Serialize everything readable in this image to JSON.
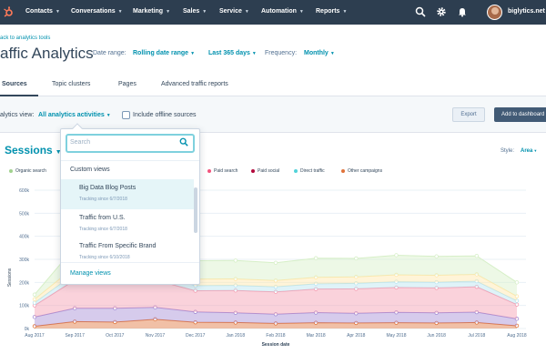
{
  "nav": {
    "items": [
      {
        "label": "Contacts"
      },
      {
        "label": "Conversations"
      },
      {
        "label": "Marketing"
      },
      {
        "label": "Sales"
      },
      {
        "label": "Service"
      },
      {
        "label": "Automation"
      },
      {
        "label": "Reports"
      }
    ],
    "account": "biglytics.net",
    "icons": [
      "hubspot-logo-icon",
      "search-icon",
      "gear-icon",
      "bell-icon"
    ]
  },
  "header": {
    "back_link": "ack to analytics tools",
    "title": "affic Analytics",
    "filters": [
      {
        "label": "Date range:",
        "value": "Rolling date range"
      },
      {
        "label": "",
        "value": "Last 365 days"
      },
      {
        "label": "Frequency:",
        "value": "Monthly"
      }
    ]
  },
  "tabs": [
    {
      "label": "Sources",
      "active": true
    },
    {
      "label": "Topic clusters",
      "active": false
    },
    {
      "label": "Pages",
      "active": false
    },
    {
      "label": "Advanced traffic reports",
      "active": false
    }
  ],
  "toolbar": {
    "view_label": "alytics view:",
    "view_value": "All analytics activities",
    "offline_label": "Include offline sources",
    "offline_checked": false,
    "export_label": "Export",
    "dashboard_label": "Add to dashboard"
  },
  "chart_header": {
    "metric": "Sessions",
    "style_label": "Style:",
    "style_value": "Area"
  },
  "legend": [
    {
      "name": "Organic search",
      "color": "#a2d28f"
    },
    {
      "name": "Paid search",
      "color": "#f2547d"
    },
    {
      "name": "Paid social",
      "color": "#b3093c"
    },
    {
      "name": "Direct traffic",
      "color": "#51d3d9"
    },
    {
      "name": "Other campaigns",
      "color": "#e0733a"
    }
  ],
  "dropdown": {
    "search_placeholder": "Search",
    "section_title": "Custom views",
    "options": [
      {
        "name": "Big Data Blog Posts",
        "sub": "Tracking since 6/7/2018",
        "highlighted": true
      },
      {
        "name": "Traffic from U.S.",
        "sub": "Tracking since 6/7/2018",
        "highlighted": false
      },
      {
        "name": "Traffic From Specific Brand",
        "sub": "Tracking since 6/10/2018",
        "highlighted": false
      }
    ],
    "manage_label": "Manage views"
  },
  "chart_data": {
    "type": "area",
    "stacked": true,
    "title": "",
    "xlabel": "Session date",
    "ylabel": "Sessions",
    "ylim": [
      0,
      600000
    ],
    "yticks": [
      {
        "value": 0,
        "label": "0k"
      },
      {
        "value": 100000,
        "label": "100k"
      },
      {
        "value": 200000,
        "label": "200k"
      },
      {
        "value": 300000,
        "label": "300k"
      },
      {
        "value": 400000,
        "label": "400k"
      },
      {
        "value": 500000,
        "label": "500k"
      },
      {
        "value": 600000,
        "label": "600k"
      }
    ],
    "x": [
      "Aug 2017",
      "Sep 2017",
      "Oct 2017",
      "Nov 2017",
      "Dec 2017",
      "Jan 2018",
      "Feb 2018",
      "Mar 2018",
      "Apr 2018",
      "May 2018",
      "Jun 2018",
      "Jul 2018",
      "Aug 2018"
    ],
    "xtick_labels": [
      "Aug 2017",
      "Sep 2017",
      "Oct 2017",
      "Nov 2017",
      "Dec 2017",
      "Jan 2018",
      "Feb 2018",
      "Mar 2018",
      "Apr 2018",
      "May 2018",
      "Jun 2018",
      "Jul 2018",
      "Aug 2018"
    ],
    "series": [
      {
        "color": "#e0733a",
        "values": [
          10000,
          30000,
          28000,
          40000,
          27000,
          26000,
          22000,
          25000,
          24000,
          25000,
          24000,
          26000,
          12000
        ]
      },
      {
        "color": "#a48cd4",
        "values": [
          40000,
          58000,
          60000,
          52000,
          45000,
          42000,
          40000,
          44000,
          42000,
          45000,
          44000,
          45000,
          30000
        ]
      },
      {
        "color": "#f49bb0",
        "values": [
          50000,
          122000,
          128000,
          118000,
          92000,
          97000,
          97000,
          102000,
          106000,
          108000,
          108000,
          110000,
          62000
        ]
      },
      {
        "color": "#b8e4ef",
        "values": [
          12000,
          28000,
          30000,
          28000,
          22000,
          22000,
          22000,
          23000,
          24000,
          25000,
          25000,
          24000,
          16000
        ]
      },
      {
        "color": "#ffe6a8",
        "values": [
          15000,
          30000,
          30000,
          30000,
          28000,
          28000,
          27000,
          28000,
          28000,
          30000,
          30000,
          30000,
          20000
        ]
      },
      {
        "color": "#d6efc7",
        "values": [
          20000,
          85000,
          87000,
          90000,
          80000,
          80000,
          77000,
          83000,
          80000,
          85000,
          82000,
          80000,
          60000
        ]
      }
    ]
  }
}
